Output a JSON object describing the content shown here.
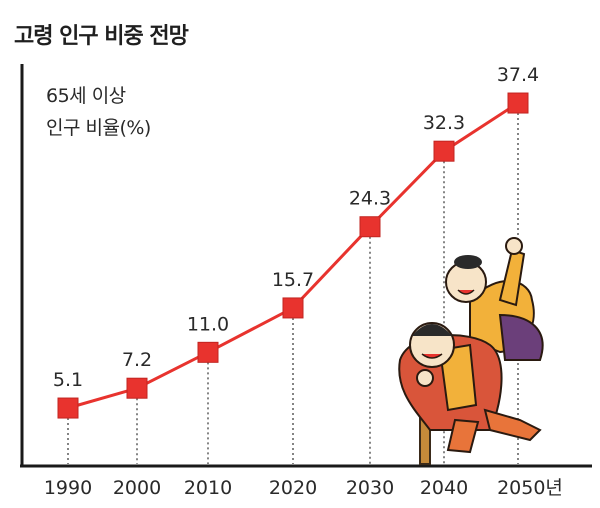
{
  "title": "고령 인구 비중 전망",
  "colors": {
    "accent": "#e8332e",
    "axis": "#1a1a1a",
    "guide": "#333333",
    "text": "#2a2a2a"
  },
  "chart_data": {
    "type": "line",
    "title": "고령 인구 비중 전망",
    "ylabel": [
      "65세 이상",
      "인구 비율(%)"
    ],
    "xlabel": "",
    "categories": [
      "1990",
      "2000",
      "2010",
      "2020",
      "2030",
      "2040",
      "2050년"
    ],
    "series": [
      {
        "values": [
          5.1,
          7.2,
          11.0,
          15.7,
          24.3,
          32.3,
          37.4
        ]
      }
    ],
    "data_labels": [
      "5.1",
      "7.2",
      "11.0",
      "15.7",
      "24.3",
      "32.3",
      "37.4"
    ],
    "marker": "square",
    "grid": false,
    "ylim": [
      0,
      40
    ]
  }
}
